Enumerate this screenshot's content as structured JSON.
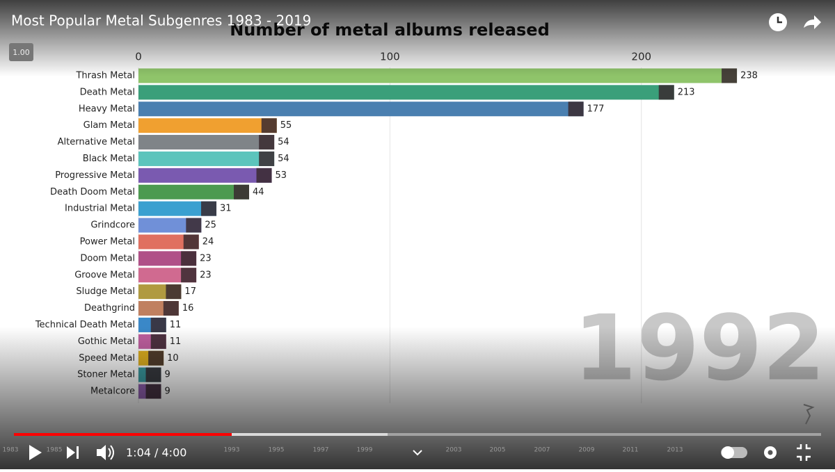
{
  "player": {
    "video_title": "Most Popular Metal Subgenres 1983 - 2019",
    "speed": "1.00",
    "time": "1:04 / 4:00",
    "timeline_years": [
      "1983",
      "1985",
      "1993",
      "1995",
      "1997",
      "1999",
      "2003",
      "2005",
      "2007",
      "2009",
      "2011",
      "2013"
    ]
  },
  "chart_data": {
    "type": "bar",
    "orientation": "horizontal",
    "title": "Number of metal albums released",
    "year_label": "1992",
    "categories": [
      "Thrash Metal",
      "Death Metal",
      "Heavy Metal",
      "Glam Metal",
      "Alternative Metal",
      "Black Metal",
      "Progressive Metal",
      "Death Doom Metal",
      "Industrial Metal",
      "Grindcore",
      "Power Metal",
      "Doom Metal",
      "Groove Metal",
      "Sludge Metal",
      "Deathgrind",
      "Technical Death Metal",
      "Gothic Metal",
      "Speed Metal",
      "Stoner Metal",
      "Metalcore"
    ],
    "values": [
      238,
      213,
      177,
      55,
      54,
      54,
      53,
      44,
      31,
      25,
      24,
      23,
      23,
      17,
      16,
      11,
      11,
      10,
      9,
      9
    ],
    "colors": [
      "#8fc46a",
      "#3a9f7a",
      "#4a7fb0",
      "#f0a030",
      "#7f8488",
      "#5cc4bc",
      "#7a5ab0",
      "#4c9a50",
      "#3aa0d0",
      "#7090d8",
      "#e07060",
      "#b05088",
      "#d06a90",
      "#b09a40",
      "#c08060",
      "#3a88c8",
      "#c060a0",
      "#e0b020",
      "#3a9aa0",
      "#9060b0"
    ],
    "xlim": [
      0,
      277
    ],
    "xticks": [
      0,
      100,
      200
    ],
    "grid": true
  }
}
